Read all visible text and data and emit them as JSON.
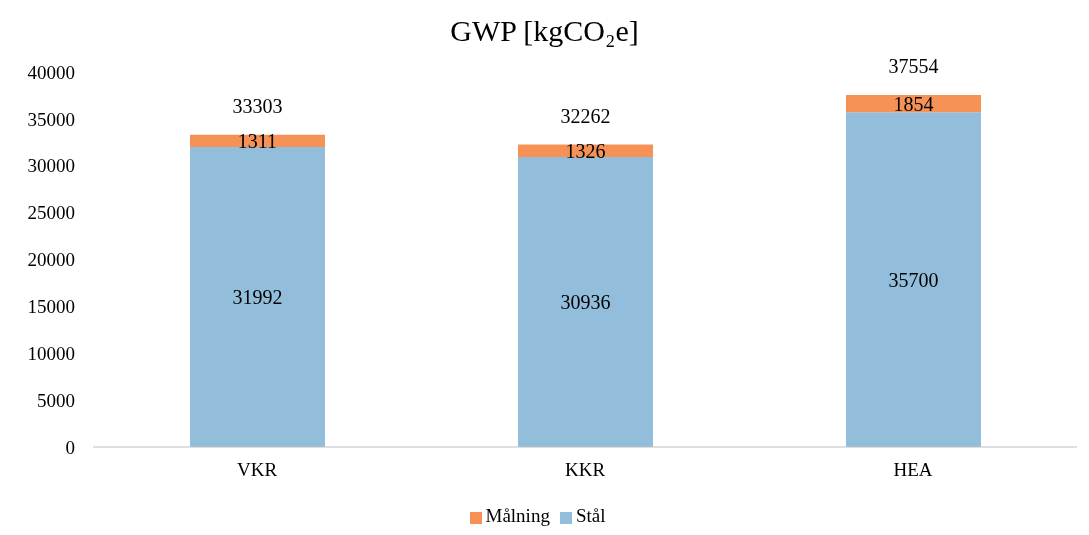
{
  "chart_data": {
    "type": "bar",
    "title": "GWP [kgCO₂e]",
    "categories": [
      "VKR",
      "KKR",
      "HEA"
    ],
    "stacked": true,
    "series": [
      {
        "name": "Stål",
        "color": "#92bedc",
        "values": [
          31992,
          30936,
          35700
        ]
      },
      {
        "name": "Målning",
        "color": "#f79257",
        "values": [
          1311,
          1326,
          1854
        ]
      }
    ],
    "totals": [
      "33303",
      "32262",
      "37554"
    ],
    "data_labels": true,
    "ylim": [
      0,
      40000
    ],
    "yticks": [
      0,
      5000,
      10000,
      15000,
      20000,
      25000,
      30000,
      35000,
      40000
    ],
    "grid": false,
    "legend": "bottom"
  }
}
